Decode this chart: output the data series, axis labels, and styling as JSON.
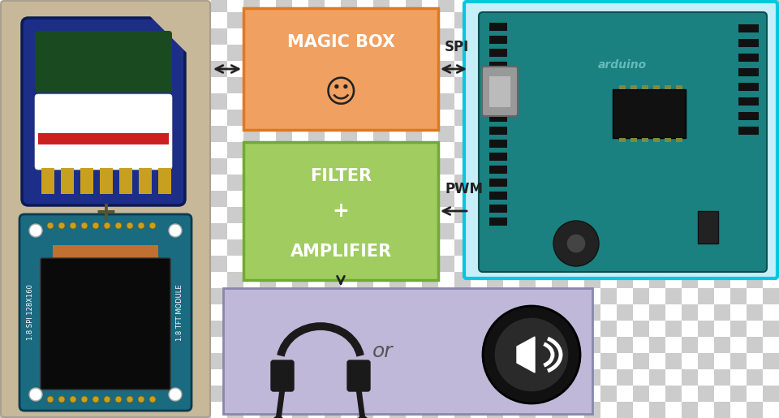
{
  "checkerboard_color1": "#cccccc",
  "checkerboard_color2": "#ffffff",
  "left_panel_bg": "#c8b89a",
  "arduino_panel_bg": "#c8eef8",
  "arduino_border": "#00c8e0",
  "magic_box_color": "#f0a060",
  "magic_box_border": "#e07820",
  "filter_box_color": "#a0cc60",
  "filter_box_border": "#70aa30",
  "output_box_color": "#c0b8d8",
  "output_box_border": "#8888aa",
  "magic_box_text": "MAGIC BOX",
  "magic_box_emoji": "☺",
  "filter_text_lines": [
    "FILTER",
    "+",
    "AMPLIFIER"
  ],
  "or_text": "or",
  "spi_label": "SPI",
  "pwm_label": "PWM",
  "plus_sign": "+",
  "box_text_color": "#ffffff",
  "arrow_color": "#222222",
  "label_color": "#222222"
}
